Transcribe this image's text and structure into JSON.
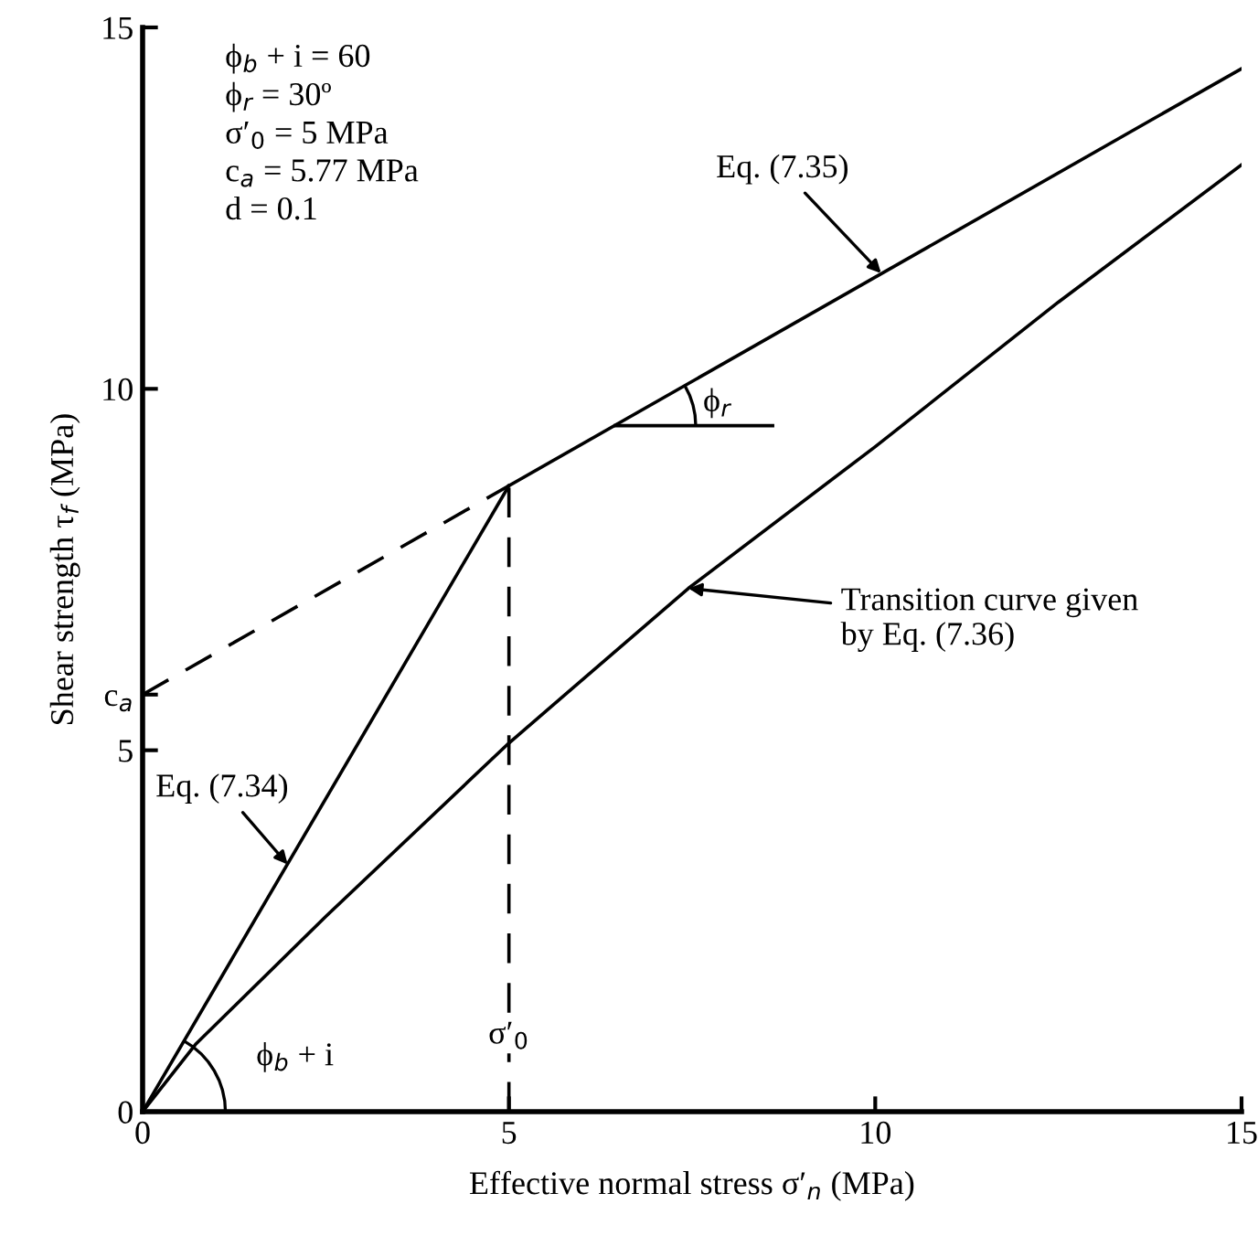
{
  "chart_data": {
    "type": "line",
    "xlabel": "Effective normal stress σ′$_{n}$ (MPa)",
    "ylabel": "Shear strength τ$_{f}$ (MPa)",
    "xlim": [
      0,
      15
    ],
    "ylim": [
      0,
      15
    ],
    "xticks": [
      0,
      5,
      10,
      15
    ],
    "yticks": [
      0,
      5,
      {
        "value": 5.77,
        "label": "c$_{a}$"
      },
      10,
      15
    ],
    "grid": false,
    "legend": false,
    "marker": "none",
    "series": [
      {
        "color": "#000000",
        "x": [
          0,
          5
        ],
        "values": [
          0,
          8.66
        ],
        "line_style": "solid"
      },
      {
        "color": "#000000",
        "x": [
          5,
          15
        ],
        "values": [
          8.66,
          14.43
        ],
        "line_style": "solid"
      },
      {
        "color": "#000000",
        "x": [
          0,
          5
        ],
        "values": [
          5.77,
          8.66
        ],
        "line_style": "dashed"
      },
      {
        "color": "#000000",
        "x": [
          6.45,
          8.6
        ],
        "values": [
          9.49,
          9.49
        ],
        "line_style": "solid"
      },
      {
        "color": "#000000",
        "x": [
          0,
          0.73,
          2.5,
          5,
          7.45,
          10,
          12.5,
          15
        ],
        "values": [
          0,
          0.94,
          2.7,
          5.1,
          7.24,
          9.2,
          11.2,
          13.1
        ],
        "line_style": "solid"
      }
    ],
    "annotations": [
      "ϕ$_{b}$ + i = 60\nϕ$_{r}$ = 30º\nσ′$_{0}$ = 5 MPa\nc$_{a}$ = 5.77 MPa\nd = 0.1",
      {
        "text": "Eq. (7.35)",
        "x": 10.08,
        "y": 11.6
      },
      {
        "text": "Eq. (7.34)",
        "x": 1.98,
        "y": 3.42
      },
      {
        "text": "Transition curve given\nby Eq. (7.36)",
        "x": 7.45,
        "y": 7.24
      },
      "ϕ$_{r}$",
      "ϕ$_{b}$ + i"
    ],
    "ref_lines": [
      {
        "axis": "x",
        "value": 5,
        "label": "σ′$_{0}$",
        "line_style": "dashed",
        "color": "#000000"
      }
    ]
  }
}
